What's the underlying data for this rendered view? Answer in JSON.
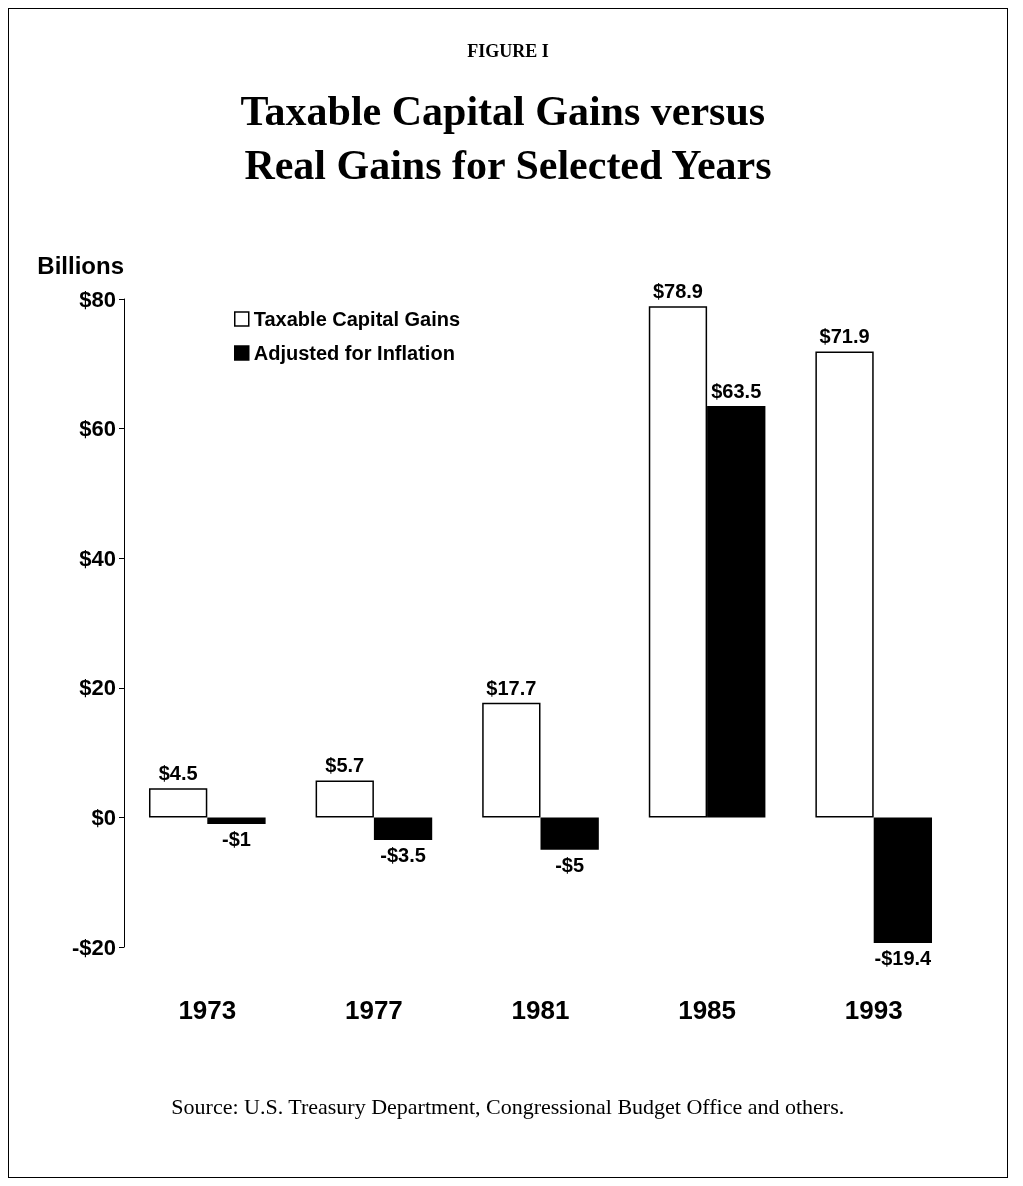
{
  "chart_data": {
    "type": "bar",
    "subtitle": "FIGURE I",
    "title": "Taxable Capital Gains versus Real Gains for Selected Years",
    "ylabel": "Billions",
    "categories": [
      "1973",
      "1977",
      "1981",
      "1985",
      "1993"
    ],
    "series": [
      {
        "name": "Taxable Capital Gains",
        "color": "#ffffff",
        "values": [
          4.5,
          5.7,
          17.7,
          78.9,
          71.9
        ],
        "value_labels": [
          "$4.5",
          "$5.7",
          "$17.7",
          "$78.9",
          "$71.9"
        ]
      },
      {
        "name": "Adjusted for Inflation",
        "color": "#000000",
        "values": [
          -1,
          -3.5,
          -5,
          63.5,
          -19.4
        ],
        "value_labels": [
          "-$1",
          "-$3.5",
          "-$5",
          "$63.5",
          "-$19.4"
        ]
      }
    ],
    "ylim": [
      -20,
      80
    ],
    "yticks": [
      {
        "value": -20,
        "label": "-$20"
      },
      {
        "value": 0,
        "label": "$0"
      },
      {
        "value": 20,
        "label": "$20"
      },
      {
        "value": 40,
        "label": "$40"
      },
      {
        "value": 60,
        "label": "$60"
      },
      {
        "value": 80,
        "label": "$80"
      }
    ],
    "grid": false,
    "legend": "top left",
    "annotations": [
      "Source: U.S. Treasury Department, Congressional Budget Office and others."
    ]
  }
}
